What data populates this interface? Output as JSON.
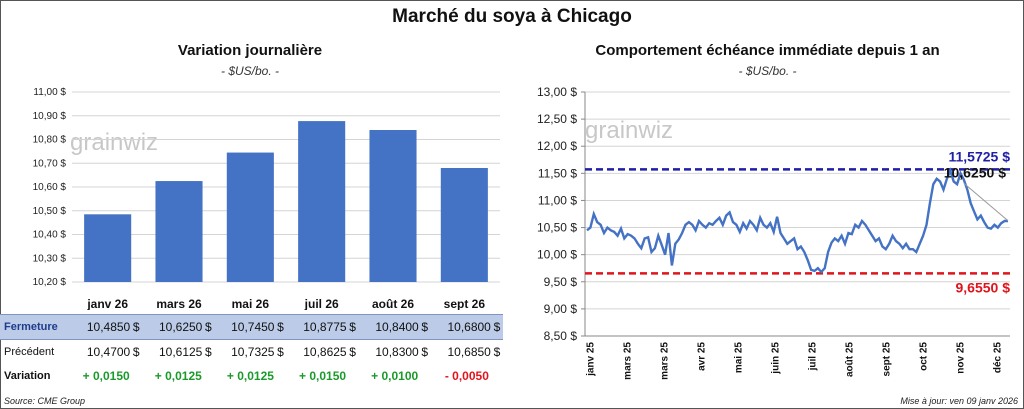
{
  "title": "Marché du soya à Chicago",
  "left": {
    "title": "Variation journalière",
    "unit": "- $US/bo. -",
    "watermark": "grainwiz",
    "chart_data": {
      "type": "bar",
      "categories": [
        "janv 26",
        "mars 26",
        "mai 26",
        "juil 26",
        "août 26",
        "sept 26"
      ],
      "values": [
        10.485,
        10.625,
        10.745,
        10.8775,
        10.84,
        10.68
      ],
      "ylim": [
        10.2,
        11.0
      ],
      "yticks": [
        "10,20 $",
        "10,30 $",
        "10,40 $",
        "10,50 $",
        "10,60 $",
        "10,70 $",
        "10,80 $",
        "10,90 $",
        "11,00 $"
      ],
      "bar_color": "#4472c4"
    }
  },
  "table": {
    "rows": [
      {
        "label": "Fermeture",
        "cells": [
          "10,4850",
          "10,6250",
          "10,7450",
          "10,8775",
          "10,8400",
          "10,6800"
        ],
        "currency": "$"
      },
      {
        "label": "Précédent",
        "cells": [
          "10,4700",
          "10,6125",
          "10,7325",
          "10,8625",
          "10,8300",
          "10,6850"
        ],
        "currency": "$"
      },
      {
        "label": "Variation",
        "cells": [
          "+ 0,0150",
          "+ 0,0125",
          "+ 0,0125",
          "+ 0,0150",
          "+ 0,0100",
          "- 0,0050"
        ],
        "signs": [
          "pos",
          "pos",
          "pos",
          "pos",
          "pos",
          "neg"
        ]
      }
    ]
  },
  "right": {
    "title": "Comportement  échéance immédiate depuis 1 an",
    "unit": "- $US/bo. -",
    "watermark": "grainwiz",
    "chart_data": {
      "type": "line",
      "ylim": [
        8.5,
        13.0
      ],
      "yticks": [
        "8,50 $",
        "9,00 $",
        "9,50 $",
        "10,00 $",
        "10,50 $",
        "11,00 $",
        "11,50 $",
        "12,00 $",
        "12,50 $",
        "13,00 $"
      ],
      "xlabels": [
        "janv 25",
        "mars 25",
        "mars 25",
        "avr 25",
        "mai 25",
        "juin 25",
        "juil 25",
        "août 25",
        "sept 25",
        "oct 25",
        "nov 25",
        "déc 25"
      ],
      "series_color": "#4472c4",
      "values": [
        10.45,
        10.5,
        10.75,
        10.6,
        10.55,
        10.4,
        10.5,
        10.45,
        10.42,
        10.35,
        10.48,
        10.3,
        10.38,
        10.35,
        10.3,
        10.2,
        10.12,
        10.3,
        10.32,
        10.05,
        10.12,
        10.35,
        10.18,
        10.0,
        10.4,
        9.8,
        10.2,
        10.28,
        10.4,
        10.55,
        10.6,
        10.55,
        10.45,
        10.62,
        10.55,
        10.5,
        10.58,
        10.55,
        10.62,
        10.68,
        10.55,
        10.72,
        10.78,
        10.6,
        10.55,
        10.42,
        10.58,
        10.48,
        10.62,
        10.55,
        10.45,
        10.68,
        10.55,
        10.5,
        10.58,
        10.42,
        10.7,
        10.4,
        10.3,
        10.2,
        10.25,
        10.3,
        10.1,
        10.15,
        10.05,
        9.9,
        9.72,
        9.7,
        9.75,
        9.68,
        9.75,
        10.05,
        10.22,
        10.3,
        10.25,
        10.35,
        10.2,
        10.4,
        10.38,
        10.55,
        10.5,
        10.62,
        10.55,
        10.45,
        10.35,
        10.25,
        10.3,
        10.15,
        10.1,
        10.2,
        10.35,
        10.25,
        10.2,
        10.12,
        10.2,
        10.1,
        10.1,
        10.05,
        10.2,
        10.35,
        10.55,
        10.95,
        11.3,
        11.4,
        11.35,
        11.2,
        11.4,
        11.55,
        11.35,
        11.3,
        11.5,
        11.38,
        11.2,
        10.95,
        10.8,
        10.65,
        10.72,
        10.6,
        10.5,
        10.48,
        10.55,
        10.5,
        10.58,
        10.62,
        10.62
      ],
      "high": {
        "value": 11.5725,
        "label": "11,5725 $",
        "color": "#1f1fa8"
      },
      "low": {
        "value": 9.655,
        "label": "9,6550 $",
        "color": "#e0141c"
      },
      "last": {
        "value": 10.625,
        "label": "10,6250 $"
      }
    }
  },
  "footer": {
    "source": "Source: CME Group",
    "updated": "Mise à jour: ven 09 janv 2026"
  }
}
